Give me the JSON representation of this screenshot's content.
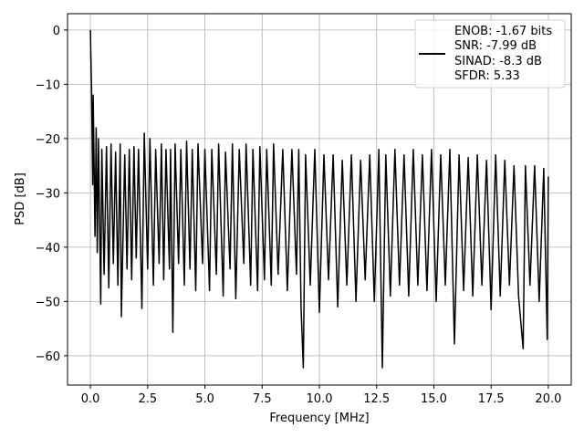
{
  "chart_data": {
    "type": "line",
    "xlabel": "Frequency [MHz]",
    "ylabel": "PSD [dB]",
    "xlim": [
      -1.0,
      21.0
    ],
    "ylim": [
      -65.4,
      3.0
    ],
    "xticks": [
      0,
      2.5,
      5,
      7.5,
      10,
      12.5,
      15,
      17.5,
      20
    ],
    "xtick_labels": [
      "0.0",
      "2.5",
      "5.0",
      "7.5",
      "10.0",
      "12.5",
      "15.0",
      "17.5",
      "20.0"
    ],
    "yticks": [
      0,
      -10,
      -20,
      -30,
      -40,
      -50,
      -60
    ],
    "ytick_labels": [
      "0",
      "−10",
      "−20",
      "−30",
      "−40",
      "−50",
      "−60"
    ],
    "grid": true,
    "legend_position": "top-right",
    "legend": [
      "ENOB: -1.67 bits",
      "SNR: -7.99 dB",
      "SINAD: -8.3 dB",
      "SFDR: 5.33"
    ],
    "series": [
      {
        "color": "#000000",
        "points": [
          [
            0,
            0
          ],
          [
            0.02,
            -5
          ],
          [
            0.05,
            -10.5
          ],
          [
            0.1,
            -28.5
          ],
          [
            0.12,
            -12
          ],
          [
            0.15,
            -22
          ],
          [
            0.2,
            -38
          ],
          [
            0.25,
            -18
          ],
          [
            0.3,
            -41
          ],
          [
            0.35,
            -20
          ],
          [
            0.45,
            -50.5
          ],
          [
            0.5,
            -22
          ],
          [
            0.6,
            -45
          ],
          [
            0.7,
            -21.5
          ],
          [
            0.8,
            -47.5
          ],
          [
            0.9,
            -21
          ],
          [
            1.0,
            -43
          ],
          [
            1.1,
            -22.5
          ],
          [
            1.2,
            -47
          ],
          [
            1.3,
            -21
          ],
          [
            1.35,
            -52.8
          ],
          [
            1.5,
            -23
          ],
          [
            1.6,
            -44
          ],
          [
            1.7,
            -22
          ],
          [
            1.8,
            -46
          ],
          [
            1.9,
            -21.5
          ],
          [
            2.0,
            -42
          ],
          [
            2.1,
            -22
          ],
          [
            2.25,
            -51.3
          ],
          [
            2.35,
            -19
          ],
          [
            2.5,
            -44
          ],
          [
            2.6,
            -20
          ],
          [
            2.75,
            -47
          ],
          [
            2.85,
            -22
          ],
          [
            3.0,
            -43
          ],
          [
            3.1,
            -21
          ],
          [
            3.2,
            -46
          ],
          [
            3.3,
            -22
          ],
          [
            3.45,
            -44
          ],
          [
            3.5,
            -22
          ],
          [
            3.6,
            -55.7
          ],
          [
            3.7,
            -21
          ],
          [
            3.85,
            -43
          ],
          [
            3.95,
            -22
          ],
          [
            4.1,
            -47
          ],
          [
            4.2,
            -20.5
          ],
          [
            4.35,
            -44
          ],
          [
            4.45,
            -22
          ],
          [
            4.6,
            -48
          ],
          [
            4.7,
            -21
          ],
          [
            4.9,
            -43
          ],
          [
            5.0,
            -22
          ],
          [
            5.2,
            -48
          ],
          [
            5.3,
            -22
          ],
          [
            5.5,
            -45
          ],
          [
            5.6,
            -21
          ],
          [
            5.8,
            -49
          ],
          [
            5.9,
            -22.5
          ],
          [
            6.1,
            -44
          ],
          [
            6.2,
            -21
          ],
          [
            6.35,
            -49.5
          ],
          [
            6.5,
            -22
          ],
          [
            6.7,
            -43
          ],
          [
            6.8,
            -21
          ],
          [
            7.0,
            -47
          ],
          [
            7.1,
            -22
          ],
          [
            7.3,
            -48
          ],
          [
            7.4,
            -21.5
          ],
          [
            7.6,
            -46
          ],
          [
            7.7,
            -22
          ],
          [
            7.9,
            -47
          ],
          [
            8.0,
            -21
          ],
          [
            8.2,
            -45
          ],
          [
            8.4,
            -22
          ],
          [
            8.6,
            -48
          ],
          [
            8.8,
            -22
          ],
          [
            9.0,
            -45
          ],
          [
            9.1,
            -22
          ],
          [
            9.2,
            -51
          ],
          [
            9.3,
            -62.2
          ],
          [
            9.4,
            -23
          ],
          [
            9.6,
            -47
          ],
          [
            9.8,
            -22
          ],
          [
            10.0,
            -52
          ],
          [
            10.2,
            -23
          ],
          [
            10.4,
            -46
          ],
          [
            10.6,
            -23
          ],
          [
            10.8,
            -51
          ],
          [
            11.0,
            -24
          ],
          [
            11.2,
            -47
          ],
          [
            11.4,
            -23
          ],
          [
            11.6,
            -50
          ],
          [
            11.8,
            -24
          ],
          [
            12.0,
            -46
          ],
          [
            12.2,
            -23
          ],
          [
            12.4,
            -50
          ],
          [
            12.6,
            -22
          ],
          [
            12.75,
            -62.2
          ],
          [
            12.9,
            -23
          ],
          [
            13.1,
            -49
          ],
          [
            13.3,
            -22
          ],
          [
            13.5,
            -47
          ],
          [
            13.7,
            -23
          ],
          [
            13.9,
            -49
          ],
          [
            14.1,
            -22
          ],
          [
            14.3,
            -47
          ],
          [
            14.5,
            -23
          ],
          [
            14.7,
            -48
          ],
          [
            14.9,
            -22
          ],
          [
            15.1,
            -50
          ],
          [
            15.3,
            -23
          ],
          [
            15.5,
            -47
          ],
          [
            15.7,
            -22
          ],
          [
            15.9,
            -57.8
          ],
          [
            16.1,
            -23
          ],
          [
            16.3,
            -48
          ],
          [
            16.5,
            -23.5
          ],
          [
            16.7,
            -49
          ],
          [
            16.9,
            -23
          ],
          [
            17.1,
            -47
          ],
          [
            17.3,
            -24
          ],
          [
            17.5,
            -51.5
          ],
          [
            17.7,
            -23
          ],
          [
            17.9,
            -49
          ],
          [
            18.1,
            -24
          ],
          [
            18.3,
            -47
          ],
          [
            18.5,
            -25
          ],
          [
            18.7,
            -49
          ],
          [
            18.9,
            -58.7
          ],
          [
            19.0,
            -25
          ],
          [
            19.2,
            -47
          ],
          [
            19.4,
            -25
          ],
          [
            19.6,
            -50
          ],
          [
            19.8,
            -25.5
          ],
          [
            19.95,
            -57
          ],
          [
            20.0,
            -27
          ]
        ]
      }
    ]
  }
}
